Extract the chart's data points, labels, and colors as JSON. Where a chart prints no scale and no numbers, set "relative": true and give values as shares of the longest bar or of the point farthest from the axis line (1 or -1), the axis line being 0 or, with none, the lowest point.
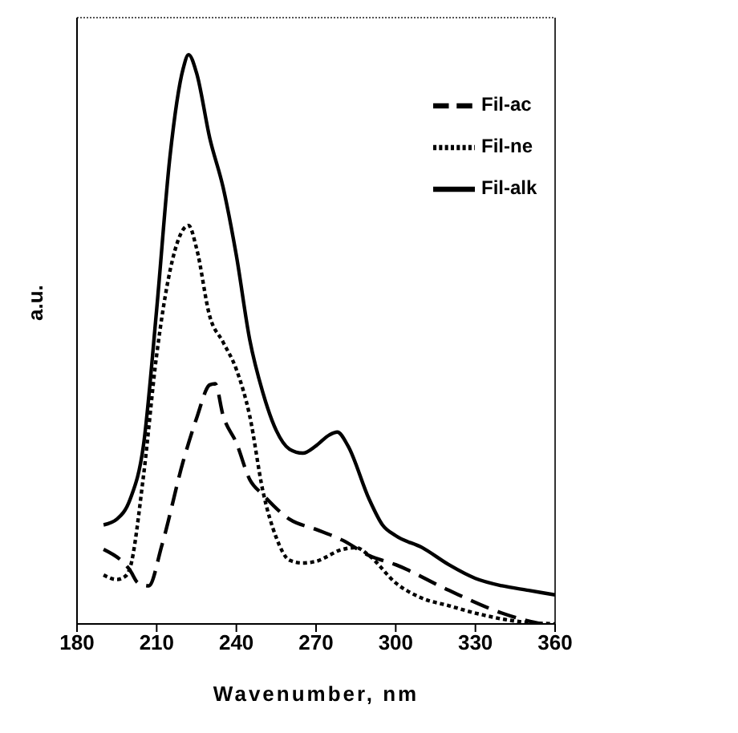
{
  "chart_data": {
    "type": "line",
    "relative": true,
    "xlabel": "Wavenumber, nm",
    "ylabel": "a.u.",
    "xlim": [
      180,
      360
    ],
    "xticks": [
      180,
      210,
      240,
      270,
      300,
      330,
      360
    ],
    "grid": false,
    "legend": "top right",
    "marker": "none",
    "series": [
      {
        "name": "Fil-ac",
        "color": "#000000",
        "line_style": "dashed",
        "x": [
          190,
          200,
          203,
          207,
          212,
          220,
          225,
          230,
          232,
          235,
          240,
          245,
          250,
          260,
          270,
          280,
          290,
          300,
          320,
          340,
          350,
          355
        ],
        "values": [
          0.131,
          0.094,
          0.072,
          0.067,
          0.139,
          0.286,
          0.361,
          0.42,
          0.422,
          0.366,
          0.318,
          0.254,
          0.227,
          0.184,
          0.166,
          0.147,
          0.12,
          0.104,
          0.059,
          0.019,
          0.005,
          0
        ]
      },
      {
        "name": "Fil-ne",
        "color": "#000000",
        "line_style": "dotted",
        "x": [
          190,
          195,
          198,
          200,
          205,
          210,
          215,
          220,
          222,
          225,
          230,
          235,
          240,
          245,
          250,
          255,
          260,
          265,
          270,
          280,
          285,
          290,
          300,
          310,
          320,
          330,
          345,
          360
        ],
        "values": [
          0.086,
          0.078,
          0.083,
          0.099,
          0.259,
          0.473,
          0.62,
          0.693,
          0.7,
          0.66,
          0.54,
          0.495,
          0.447,
          0.366,
          0.233,
          0.152,
          0.112,
          0.107,
          0.11,
          0.131,
          0.134,
          0.12,
          0.072,
          0.045,
          0.032,
          0.019,
          0.005,
          0
        ]
      },
      {
        "name": "Fil-alk",
        "color": "#000000",
        "line_style": "solid",
        "x": [
          190,
          195,
          200,
          205,
          210,
          215,
          220,
          222,
          225,
          230,
          235,
          240,
          245,
          250,
          255,
          260,
          265,
          270,
          275,
          278,
          282,
          290,
          295,
          300,
          310,
          320,
          330,
          340,
          350,
          360
        ],
        "values": [
          0.174,
          0.184,
          0.219,
          0.313,
          0.553,
          0.821,
          0.976,
          1,
          0.968,
          0.853,
          0.767,
          0.647,
          0.5,
          0.406,
          0.34,
          0.307,
          0.3,
          0.313,
          0.332,
          0.337,
          0.313,
          0.219,
          0.174,
          0.155,
          0.134,
          0.104,
          0.08,
          0.067,
          0.059,
          0.051
        ]
      }
    ]
  }
}
